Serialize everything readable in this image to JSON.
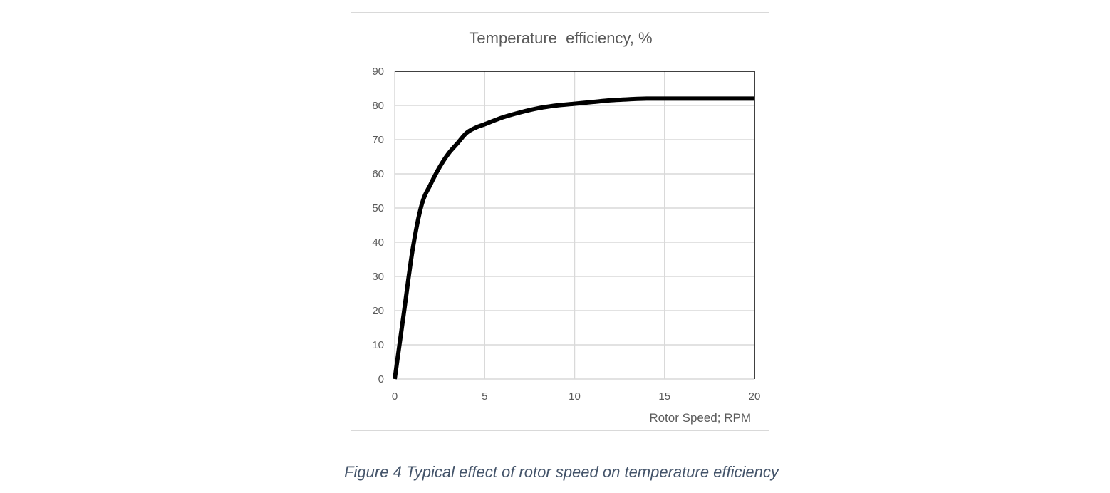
{
  "chart_data": {
    "type": "line",
    "title": "Temperature  efficiency, %",
    "xlabel": "Rotor Speed; RPM",
    "ylabel": "",
    "xlim": [
      0,
      20
    ],
    "ylim": [
      0,
      90
    ],
    "xticks": [
      0,
      5,
      10,
      15,
      20
    ],
    "yticks": [
      0,
      10,
      20,
      30,
      40,
      50,
      60,
      70,
      80,
      90
    ],
    "grid": true,
    "legend": "none",
    "series": [
      {
        "color": "#000000",
        "x": [
          0,
          0.5,
          1,
          1.5,
          2,
          2.5,
          3,
          3.5,
          4,
          4.5,
          5,
          6,
          7,
          8,
          9,
          10,
          11,
          12,
          13,
          14,
          15,
          16,
          17,
          18,
          19,
          20
        ],
        "y": [
          0,
          19,
          38,
          51,
          57,
          62,
          66,
          69,
          72,
          73.5,
          74.5,
          76.5,
          78,
          79.2,
          80,
          80.5,
          81,
          81.5,
          81.8,
          82,
          82,
          82,
          82,
          82,
          82,
          82
        ]
      }
    ]
  },
  "caption": "Figure 4 Typical effect of rotor speed on temperature efficiency"
}
